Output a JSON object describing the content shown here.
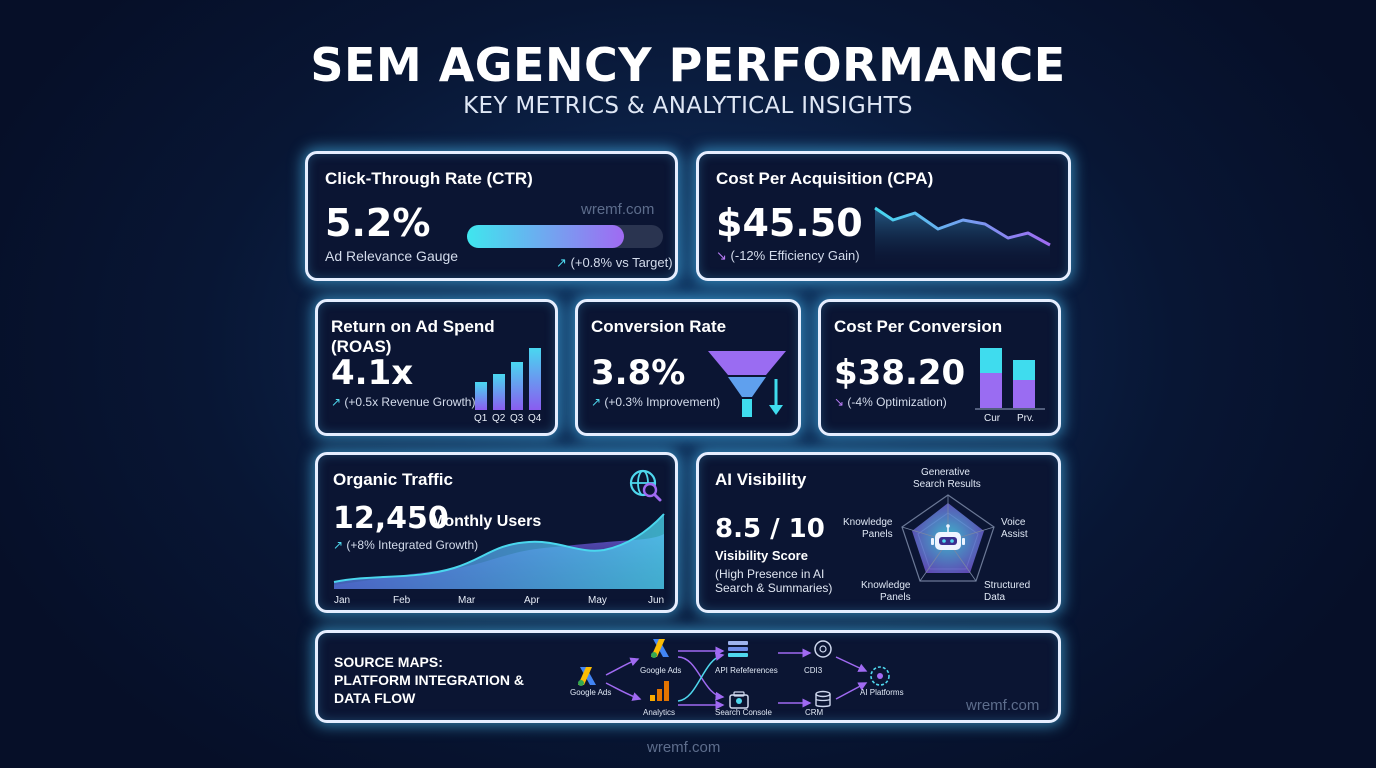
{
  "header": {
    "title": "SEM AGENCY PERFORMANCE",
    "subtitle": "KEY METRICS & ANALYTICAL INSIGHTS"
  },
  "colors": {
    "accent_cyan": "#3fe0f0",
    "accent_purple": "#9b6cf0",
    "card_border": "#e6eeff",
    "card_bg": "#0b1533"
  },
  "ctr": {
    "title": "Click-Through Rate (CTR)",
    "value": "5.2%",
    "caption": "Ad Relevance Gauge",
    "gauge_fill": 0.8,
    "change": "(+0.8% vs Target)",
    "watermark": "wremf.com"
  },
  "cpa": {
    "title": "Cost Per Acquisition (CPA)",
    "value": "$45.50",
    "change": "(-12% Efficiency Gain)"
  },
  "roas": {
    "title": "Return on Ad Spend (ROAS)",
    "value": "4.1x",
    "change": "(+0.5x Revenue Growth)",
    "quarters": [
      "Q1",
      "Q2",
      "Q3",
      "Q4"
    ]
  },
  "conversion_rate": {
    "title": "Conversion Rate",
    "value": "3.8%",
    "change": "(+0.3% Improvement)"
  },
  "cost_per_conversion": {
    "title": "Cost Per Conversion",
    "value": "$38.20",
    "change": "(-4% Optimization)",
    "bars": [
      "Cur",
      "Prv."
    ]
  },
  "organic": {
    "title": "Organic Traffic",
    "value": "12,450",
    "unit": "Monthly Users",
    "change": "(+8% Integrated Growth)",
    "months": [
      "Jan",
      "Feb",
      "Mar",
      "Apr",
      "May",
      "Jun"
    ]
  },
  "ai_visibility": {
    "title": "AI Visibility",
    "value": "8.5 / 10",
    "score_label": "Visibility Score",
    "note_line1": "(High Presence in AI",
    "note_line2": "Search & Summaries)",
    "axes": {
      "top_1": "Generative",
      "top_2": "Search Results",
      "right_1": "Voice",
      "right_2": "Assist",
      "bottom_right_1": "Structured",
      "bottom_right_2": "Data",
      "bottom_left_1": "Knowledge",
      "bottom_left_2": "Panels",
      "left_1": "Knowledge",
      "left_2": "Panels"
    }
  },
  "source_maps": {
    "title_line1": "SOURCE MAPS:",
    "title_line2": "PLATFORM INTEGRATION &",
    "title_line3": "DATA FLOW",
    "nodes": {
      "google_ads_left": "Google Ads",
      "google_ads_top": "Google Ads",
      "analytics": "Analytics",
      "api_references": "API Refeferences",
      "search_console": "Search Console",
      "cdi3": "CDI3",
      "crm": "CRM",
      "ai_platforms": "AI Platforms"
    },
    "watermark": "wremf.com"
  },
  "footer": {
    "watermark": "wremf.com"
  }
}
